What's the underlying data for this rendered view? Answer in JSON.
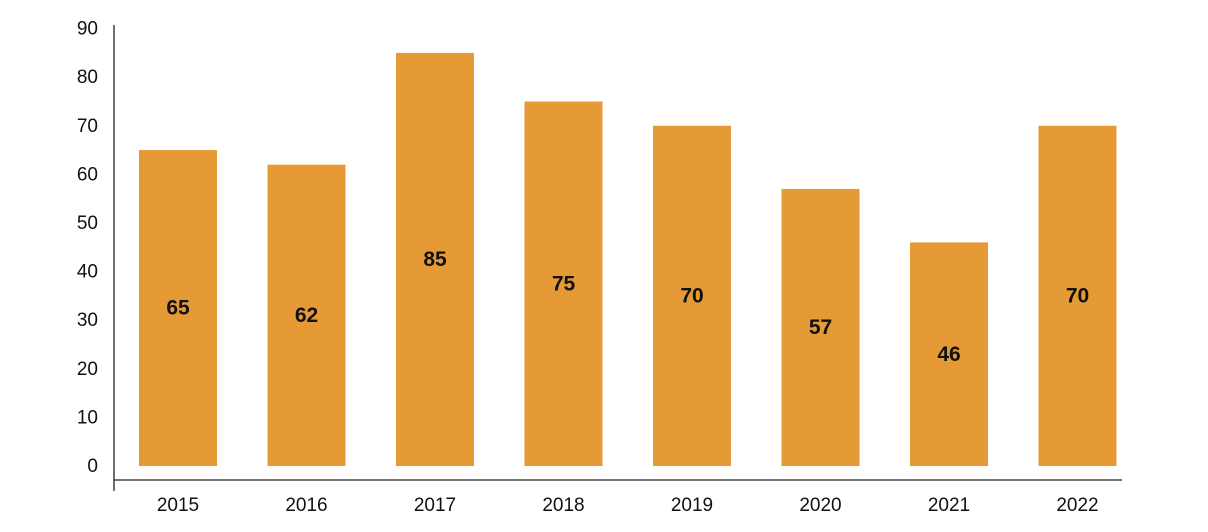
{
  "chart_data": {
    "type": "bar",
    "title": "",
    "xlabel": "",
    "ylabel": "",
    "categories": [
      "2015",
      "2016",
      "2017",
      "2018",
      "2019",
      "2020",
      "2021",
      "2022"
    ],
    "values": [
      65,
      62,
      85,
      75,
      70,
      57,
      46,
      70
    ],
    "data_labels": [
      "65",
      "62",
      "85",
      "75",
      "70",
      "57",
      "46",
      "70"
    ],
    "ylim": [
      0,
      90
    ],
    "yticks": [
      "0",
      "10",
      "20",
      "30",
      "40",
      "50",
      "60",
      "70",
      "80",
      "90"
    ],
    "grid": false,
    "bar_color": "#E59A35"
  }
}
